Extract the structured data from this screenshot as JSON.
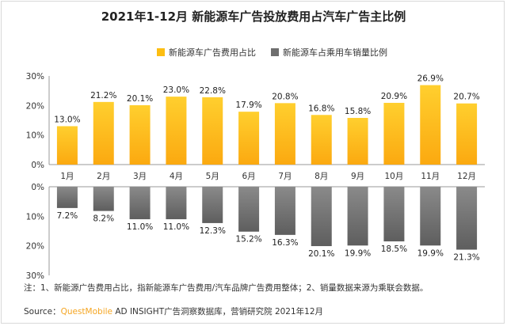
{
  "title": "2021年1-12月 新能源车广告投放费用占汽车广告主比例",
  "colors": {
    "yellow": "#FDBE12",
    "gray": "#6E6E6E"
  },
  "legend": [
    {
      "label": "新能源车广告费用占比",
      "color": "#FDBE12"
    },
    {
      "label": "新能源车占乘用车销量比例",
      "color": "#6E6E6E"
    }
  ],
  "note": "注：1、新能源广告费用占比，指新能源车广告费用/汽车品牌广告费用整体；2、销量数据来源为乘联会数据。",
  "source": {
    "prefix": "Source：",
    "brand": "QuestMobile",
    "suffix": " AD INSIGHT广告洞察数据库，营销研究院 2021年12月"
  },
  "chart_data": {
    "type": "bar",
    "categories": [
      "1月",
      "2月",
      "3月",
      "4月",
      "5月",
      "6月",
      "7月",
      "8月",
      "9月",
      "10月",
      "11月",
      "12月"
    ],
    "series": [
      {
        "name": "新能源车广告费用占比",
        "values": [
          13.0,
          21.2,
          20.1,
          23.0,
          22.8,
          17.9,
          20.8,
          16.8,
          15.8,
          20.9,
          26.9,
          20.7
        ],
        "labels": [
          "13.0%",
          "21.2%",
          "20.1%",
          "23.0%",
          "22.8%",
          "17.9%",
          "20.8%",
          "16.8%",
          "15.8%",
          "20.9%",
          "26.9%",
          "20.7%"
        ],
        "color": "#FDBE12",
        "direction": "up"
      },
      {
        "name": "新能源车占乘用车销量比例",
        "values": [
          7.2,
          8.2,
          11.0,
          11.0,
          12.3,
          15.2,
          16.3,
          20.1,
          19.9,
          18.5,
          19.9,
          21.3
        ],
        "labels": [
          "7.2%",
          "8.2%",
          "11.0%",
          "11.0%",
          "12.3%",
          "15.2%",
          "16.3%",
          "20.1%",
          "19.9%",
          "18.5%",
          "19.9%",
          "21.3%"
        ],
        "color": "#6E6E6E",
        "direction": "down"
      }
    ],
    "upper_axis": {
      "ylim": [
        0,
        30
      ],
      "ticks": [
        "0%",
        "10%",
        "20%",
        "30%"
      ]
    },
    "lower_axis": {
      "ylim": [
        0,
        30
      ],
      "ticks": [
        "0%",
        "10%",
        "20%",
        "30%"
      ]
    },
    "grid": false
  }
}
